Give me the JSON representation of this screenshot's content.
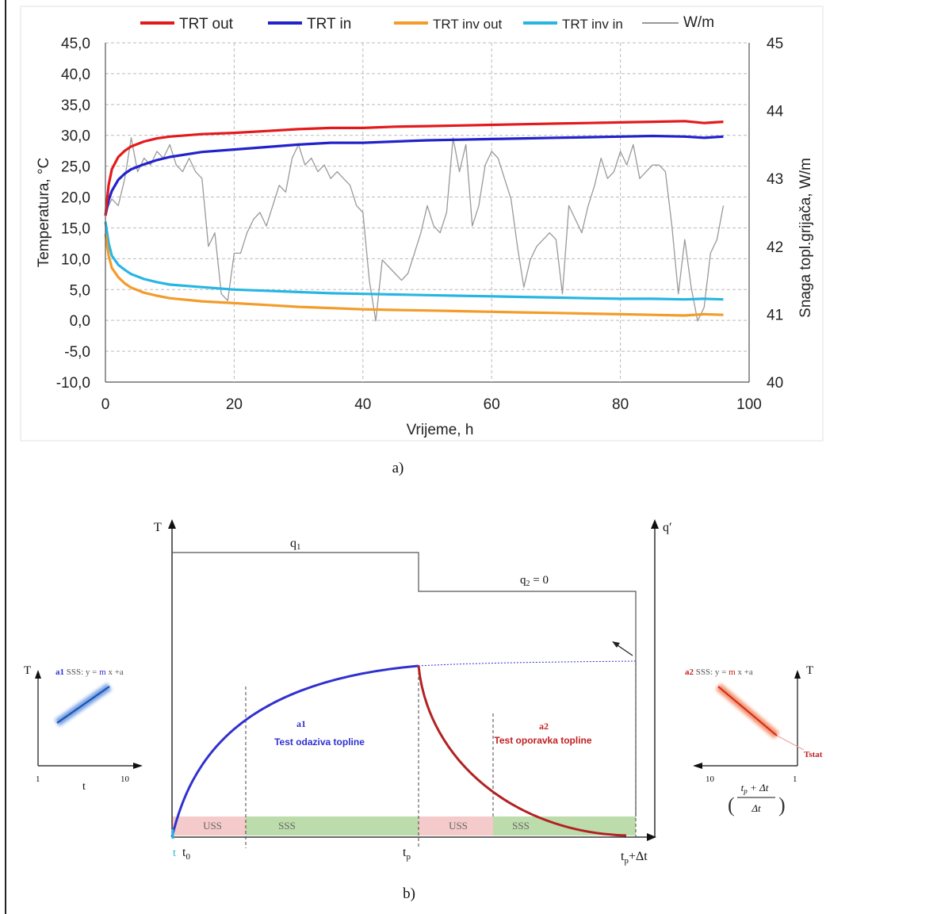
{
  "captions": {
    "a": "a)",
    "b": "b)"
  },
  "colors": {
    "trt_out": "#e31a1c",
    "trt_in": "#2222cc",
    "trt_inv_out": "#f39c2a",
    "trt_inv_in": "#27b6e3",
    "power": "#999999",
    "grid": "#bbbbbb",
    "curve_a1": "#3030d0",
    "curve_a2": "#b22222",
    "uss_band": "#f5caca",
    "sss_band": "#bcdcac"
  },
  "chart_data": {
    "type": "line",
    "xlabel": "Vrijeme, h",
    "ylabel": "Temperatura, °C",
    "y2label": "Snaga topl.grijača, W/m",
    "xlim": [
      0,
      100
    ],
    "ylim": [
      -10,
      45
    ],
    "y2lim": [
      40,
      45
    ],
    "x_ticks": [
      "0",
      "20",
      "40",
      "60",
      "80",
      "100"
    ],
    "y_ticks": [
      "-10,0",
      "-5,0",
      "0,0",
      "5,0",
      "10,0",
      "15,0",
      "20,0",
      "25,0",
      "30,0",
      "35,0",
      "40,0",
      "45,0"
    ],
    "y2_ticks": [
      "40",
      "41",
      "42",
      "43",
      "44",
      "45"
    ],
    "grid": true,
    "legend_position": "top",
    "series": [
      {
        "name": "TRT out",
        "axis": "left",
        "x": [
          0,
          0.5,
          1,
          2,
          3,
          4,
          6,
          8,
          10,
          15,
          20,
          25,
          30,
          35,
          40,
          45,
          50,
          55,
          60,
          65,
          70,
          75,
          80,
          85,
          90,
          93,
          96
        ],
        "y": [
          17,
          22,
          24.5,
          26.5,
          27.5,
          28.2,
          29,
          29.5,
          29.8,
          30.2,
          30.4,
          30.7,
          31,
          31.2,
          31.2,
          31.4,
          31.5,
          31.6,
          31.7,
          31.8,
          31.9,
          32,
          32.1,
          32.2,
          32.3,
          32,
          32.2
        ]
      },
      {
        "name": "TRT in",
        "axis": "left",
        "x": [
          0,
          0.5,
          1,
          2,
          3,
          4,
          6,
          8,
          10,
          15,
          20,
          25,
          30,
          35,
          40,
          45,
          50,
          55,
          60,
          65,
          70,
          75,
          80,
          85,
          90,
          93,
          96
        ],
        "y": [
          17,
          19.5,
          21,
          22.8,
          23.8,
          24.5,
          25.3,
          26,
          26.5,
          27.3,
          27.7,
          28.1,
          28.5,
          28.8,
          28.8,
          29,
          29.2,
          29.3,
          29.4,
          29.5,
          29.6,
          29.7,
          29.8,
          29.9,
          29.8,
          29.6,
          29.8
        ]
      },
      {
        "name": "TRT inv out",
        "axis": "left",
        "x": [
          0,
          0.5,
          1,
          2,
          3,
          4,
          6,
          8,
          10,
          15,
          20,
          25,
          30,
          35,
          40,
          45,
          50,
          55,
          60,
          65,
          70,
          75,
          80,
          85,
          90,
          93,
          96
        ],
        "y": [
          14,
          10.5,
          8.5,
          7,
          6,
          5.3,
          4.5,
          4,
          3.6,
          3.1,
          2.8,
          2.5,
          2.2,
          2,
          1.8,
          1.7,
          1.6,
          1.5,
          1.4,
          1.3,
          1.2,
          1.1,
          1,
          0.9,
          0.8,
          1,
          0.9
        ]
      },
      {
        "name": "TRT inv in",
        "axis": "left",
        "x": [
          0,
          0.5,
          1,
          2,
          3,
          4,
          6,
          8,
          10,
          15,
          20,
          25,
          30,
          35,
          40,
          45,
          50,
          55,
          60,
          65,
          70,
          75,
          80,
          85,
          90,
          93,
          96
        ],
        "y": [
          16,
          12.5,
          10.5,
          9,
          8.2,
          7.5,
          6.7,
          6.2,
          5.8,
          5.4,
          5,
          4.8,
          4.6,
          4.4,
          4.3,
          4.2,
          4.1,
          4,
          3.9,
          3.8,
          3.7,
          3.6,
          3.5,
          3.5,
          3.4,
          3.5,
          3.4
        ]
      },
      {
        "name": "W/m",
        "axis": "right",
        "x": [
          0,
          1,
          2,
          3,
          4,
          5,
          6,
          7,
          8,
          9,
          10,
          11,
          12,
          13,
          14,
          15,
          16,
          17,
          18,
          19,
          20,
          21,
          22,
          23,
          24,
          25,
          26,
          27,
          28,
          29,
          30,
          31,
          32,
          33,
          34,
          35,
          36,
          37,
          38,
          39,
          40,
          41,
          42,
          43,
          44,
          45,
          46,
          47,
          48,
          49,
          50,
          51,
          52,
          53,
          54,
          55,
          56,
          57,
          58,
          59,
          60,
          61,
          62,
          63,
          64,
          65,
          66,
          67,
          68,
          69,
          70,
          71,
          72,
          73,
          74,
          75,
          76,
          77,
          78,
          79,
          80,
          81,
          82,
          83,
          84,
          85,
          86,
          87,
          88,
          89,
          90,
          91,
          92,
          93,
          94,
          95,
          96
        ],
        "y": [
          42.5,
          42.7,
          42.6,
          43,
          43.6,
          43.1,
          43.3,
          43.2,
          43.4,
          43.3,
          43.5,
          43.2,
          43.1,
          43.3,
          43.1,
          43,
          42,
          42.2,
          41.3,
          41.2,
          41.9,
          41.9,
          42.2,
          42.4,
          42.5,
          42.3,
          42.6,
          42.9,
          42.8,
          43.3,
          43.5,
          43.2,
          43.3,
          43.1,
          43.2,
          43,
          43.1,
          43,
          42.9,
          42.6,
          42.5,
          41.5,
          40.9,
          41.8,
          41.7,
          41.6,
          41.5,
          41.6,
          41.9,
          42.2,
          42.6,
          42.3,
          42.2,
          42.5,
          43.6,
          43.1,
          43.5,
          42.3,
          42.6,
          43.2,
          43.4,
          43.3,
          43.0,
          42.7,
          42.0,
          41.4,
          41.8,
          42.0,
          42.1,
          42.2,
          42.1,
          41.3,
          42.6,
          42.4,
          42.2,
          42.6,
          42.9,
          43.3,
          43.0,
          43.1,
          43.4,
          43.2,
          43.5,
          43.0,
          43.1,
          43.2,
          43.2,
          43.1,
          42.3,
          41.3,
          42.1,
          41.4,
          40.9,
          41.1,
          41.9,
          42.1,
          42.6
        ]
      }
    ]
  },
  "diagram": {
    "axis_T": "T",
    "axis_q": "q′",
    "q1": "q",
    "q1_sub": "1",
    "q2": "q",
    "q2_sub": "2",
    "q2_rest": " = 0",
    "a1_label": "a1",
    "a1_text": "Test odaziva topline",
    "a2_label": "a2",
    "a2_text": "Test oporavka topline",
    "uss": "USS",
    "sss": "SSS",
    "t_marker": "t",
    "t0": "t",
    "t0_sub": "0",
    "tp": "t",
    "tp_sub": "p",
    "tpdt": "t",
    "tpdt_sub": "p",
    "tpdt_rest": "+Δt"
  },
  "inset_left": {
    "axis_T": "T",
    "label_prefix": "a1",
    "label_mid": " SSS: y = ",
    "label_m": "m",
    "label_end": " x +a",
    "x_min": "1",
    "x_max": "10",
    "x_label": "t"
  },
  "inset_right": {
    "axis_T": "T",
    "label_prefix": "a2",
    "label_mid": " SSS: y = ",
    "label_m": "m",
    "label_end": " x +a",
    "x_min": "10",
    "x_max": "1",
    "tstat": "Tstat",
    "frac_num": "t",
    "frac_num_sub": "p",
    "frac_num_rest": " + Δt",
    "frac_den": "Δt"
  }
}
